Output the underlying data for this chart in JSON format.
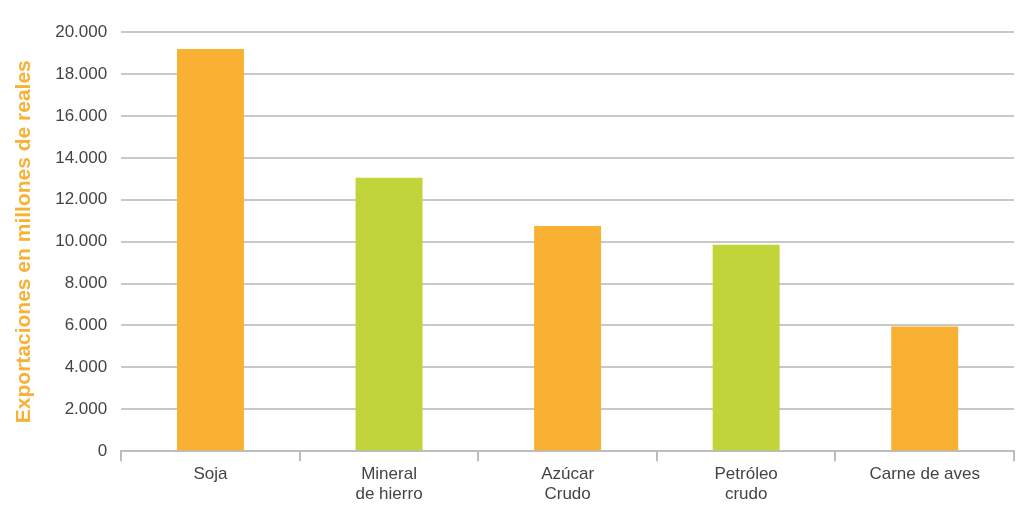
{
  "chart_data": {
    "type": "bar",
    "ylabel": "Exportaciones en millones de reales",
    "categories": [
      "Soja",
      "Mineral\nde hierro",
      "Azúcar\nCrudo",
      "Petróleo\ncrudo",
      "Carne de aves"
    ],
    "values": [
      19200,
      13050,
      10750,
      9850,
      5950
    ],
    "colors": [
      "#f8b133",
      "#c1d43a",
      "#f8b133",
      "#c1d43a",
      "#f8b133"
    ],
    "ylim": [
      0,
      20000
    ],
    "yticks": [
      {
        "value": 0,
        "label": "0"
      },
      {
        "value": 2000,
        "label": "2.000"
      },
      {
        "value": 4000,
        "label": "4.000"
      },
      {
        "value": 6000,
        "label": "6.000"
      },
      {
        "value": 8000,
        "label": "8.000"
      },
      {
        "value": 10000,
        "label": "10.000"
      },
      {
        "value": 12000,
        "label": "12.000"
      },
      {
        "value": 14000,
        "label": "14.000"
      },
      {
        "value": 16000,
        "label": "16.000"
      },
      {
        "value": 18000,
        "label": "18.000"
      },
      {
        "value": 20000,
        "label": "20.000"
      }
    ],
    "grid": "y",
    "legend": false
  }
}
